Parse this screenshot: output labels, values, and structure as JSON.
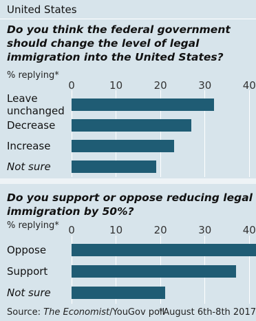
{
  "header": "United States",
  "chart_data": [
    {
      "type": "bar",
      "title": "Do you think the federal government should change the level of legal immigration into the United States?",
      "subtitle": "% replying*",
      "categories": [
        "Leave unchanged",
        "Decrease",
        "Increase",
        "Not sure"
      ],
      "values": [
        32,
        27,
        23,
        19
      ],
      "color": "#1f5c74",
      "xlim": [
        0,
        41.5
      ],
      "xticks": [
        0,
        10,
        20,
        30,
        40
      ],
      "grid": true
    },
    {
      "type": "bar",
      "title": "Do you support or oppose reducing legal immigration by 50%?",
      "subtitle": "% replying*",
      "categories": [
        "Oppose",
        "Support",
        "Not sure"
      ],
      "values": [
        42,
        37,
        21
      ],
      "color": "#1f5c74",
      "xlim": [
        0,
        41.5
      ],
      "xticks": [
        0,
        10,
        20,
        30,
        40
      ],
      "grid": true
    }
  ],
  "source": {
    "prefix": "Source: ",
    "publication": "The Economist",
    "suffix": "/YouGov poll"
  },
  "footnote": "*August 6th-8th 2017"
}
